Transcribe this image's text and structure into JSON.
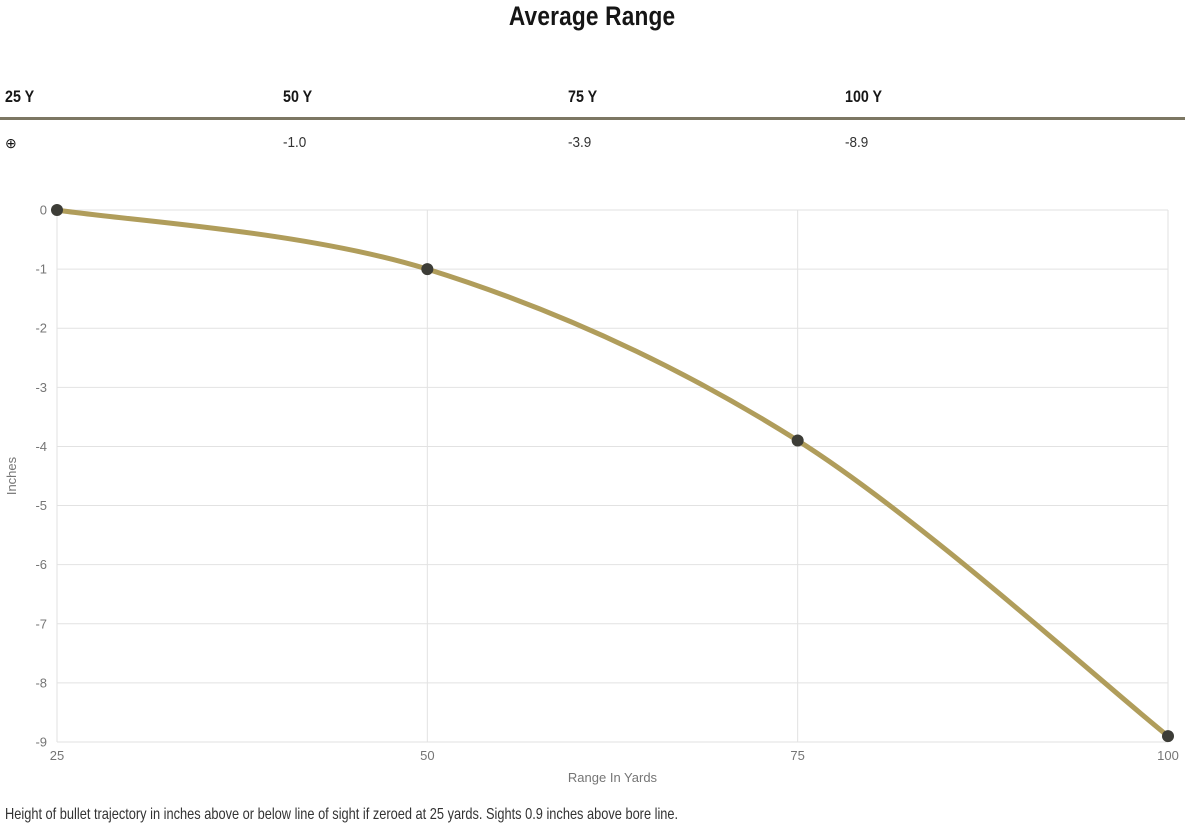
{
  "page": {
    "title": "Average Range",
    "footnote": "Height of bullet trajectory in inches above or below line of sight if zeroed at 25 yards. Sights 0.9 inches above bore line."
  },
  "table": {
    "headers": [
      "25 Y",
      "50 Y",
      "75 Y",
      "100 Y"
    ],
    "row": [
      "⊕",
      "-1.0",
      "-3.9",
      "-8.9"
    ],
    "zero_icon": "crosshair-circled-plus",
    "divider_color": "#7c7763"
  },
  "chart_data": {
    "type": "line",
    "title": "Average Range",
    "x": [
      25,
      50,
      75,
      100
    ],
    "series": [
      {
        "name": "Average Range",
        "values": [
          0,
          -1.0,
          -3.9,
          -8.9
        ]
      }
    ],
    "xlabel": "Range In Yards",
    "ylabel": "Inches",
    "xlim": [
      25,
      100
    ],
    "ylim": [
      -9,
      0
    ],
    "x_ticks": [
      25,
      50,
      75,
      100
    ],
    "y_ticks": [
      0,
      -1,
      -2,
      -3,
      -4,
      -5,
      -6,
      -7,
      -8,
      -9
    ],
    "grid": true,
    "legend": "none",
    "curve": "smooth",
    "line_color": "#b09d5b",
    "point_color": "#3d3d37",
    "grid_color": "#e2e2e2",
    "tick_color": "#757575",
    "line_width": 5,
    "point_radius": 6
  }
}
